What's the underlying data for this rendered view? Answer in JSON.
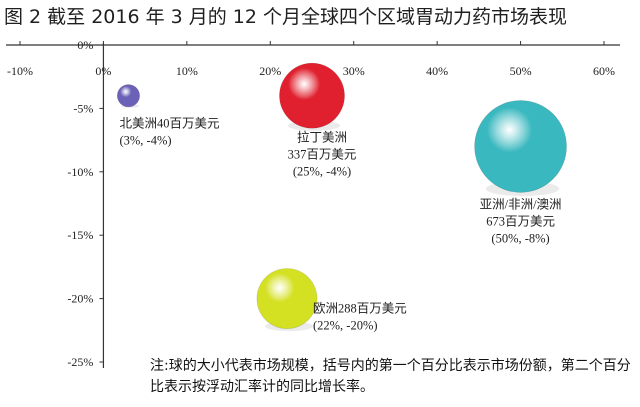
{
  "chart_data": {
    "type": "scatter",
    "title": "图 2 截至 2016 年 3 月的 12 个月全球四个区域胃动力药市场表现",
    "x_ticks": [
      "-10%",
      "0%",
      "10%",
      "20%",
      "30%",
      "40%",
      "50%",
      "60%"
    ],
    "y_ticks": [
      "0%",
      "-5%",
      "-10%",
      "-15%",
      "-20%",
      "-25%"
    ],
    "xlim": [
      -10,
      60
    ],
    "ylim": [
      -25,
      0
    ],
    "x_tick_values": [
      -10,
      0,
      10,
      20,
      30,
      40,
      50,
      60
    ],
    "y_tick_values": [
      0,
      -5,
      -10,
      -15,
      -20,
      -25
    ],
    "grid": false,
    "points": [
      {
        "name": "北美洲",
        "x": 3,
        "y": -4,
        "size": 40,
        "label": "北美洲40百万美元",
        "sublabel": "(3%, -4%)",
        "color": "#6b62b8"
      },
      {
        "name": "拉丁美洲",
        "x": 25,
        "y": -4,
        "size": 337,
        "label": "拉丁美洲",
        "label2": "337百万美元",
        "sublabel": "(25%, -4%)",
        "color": "#e0202e"
      },
      {
        "name": "亚洲/非洲/澳洲",
        "x": 50,
        "y": -8,
        "size": 673,
        "label": "亚洲/非洲/澳洲",
        "label2": "673百万美元",
        "sublabel": "(50%, -8%)",
        "color": "#3ab8bf"
      },
      {
        "name": "欧洲",
        "x": 22,
        "y": -20,
        "size": 288,
        "label": "欧洲288百万美元",
        "sublabel": "(22%, -20%)",
        "color": "#d4e022"
      }
    ],
    "note": "注:球的大小代表市场规模，括号内的第一个百分比表示市场份额，第二个百分比表示按浮动汇率计的同比增长率。"
  }
}
